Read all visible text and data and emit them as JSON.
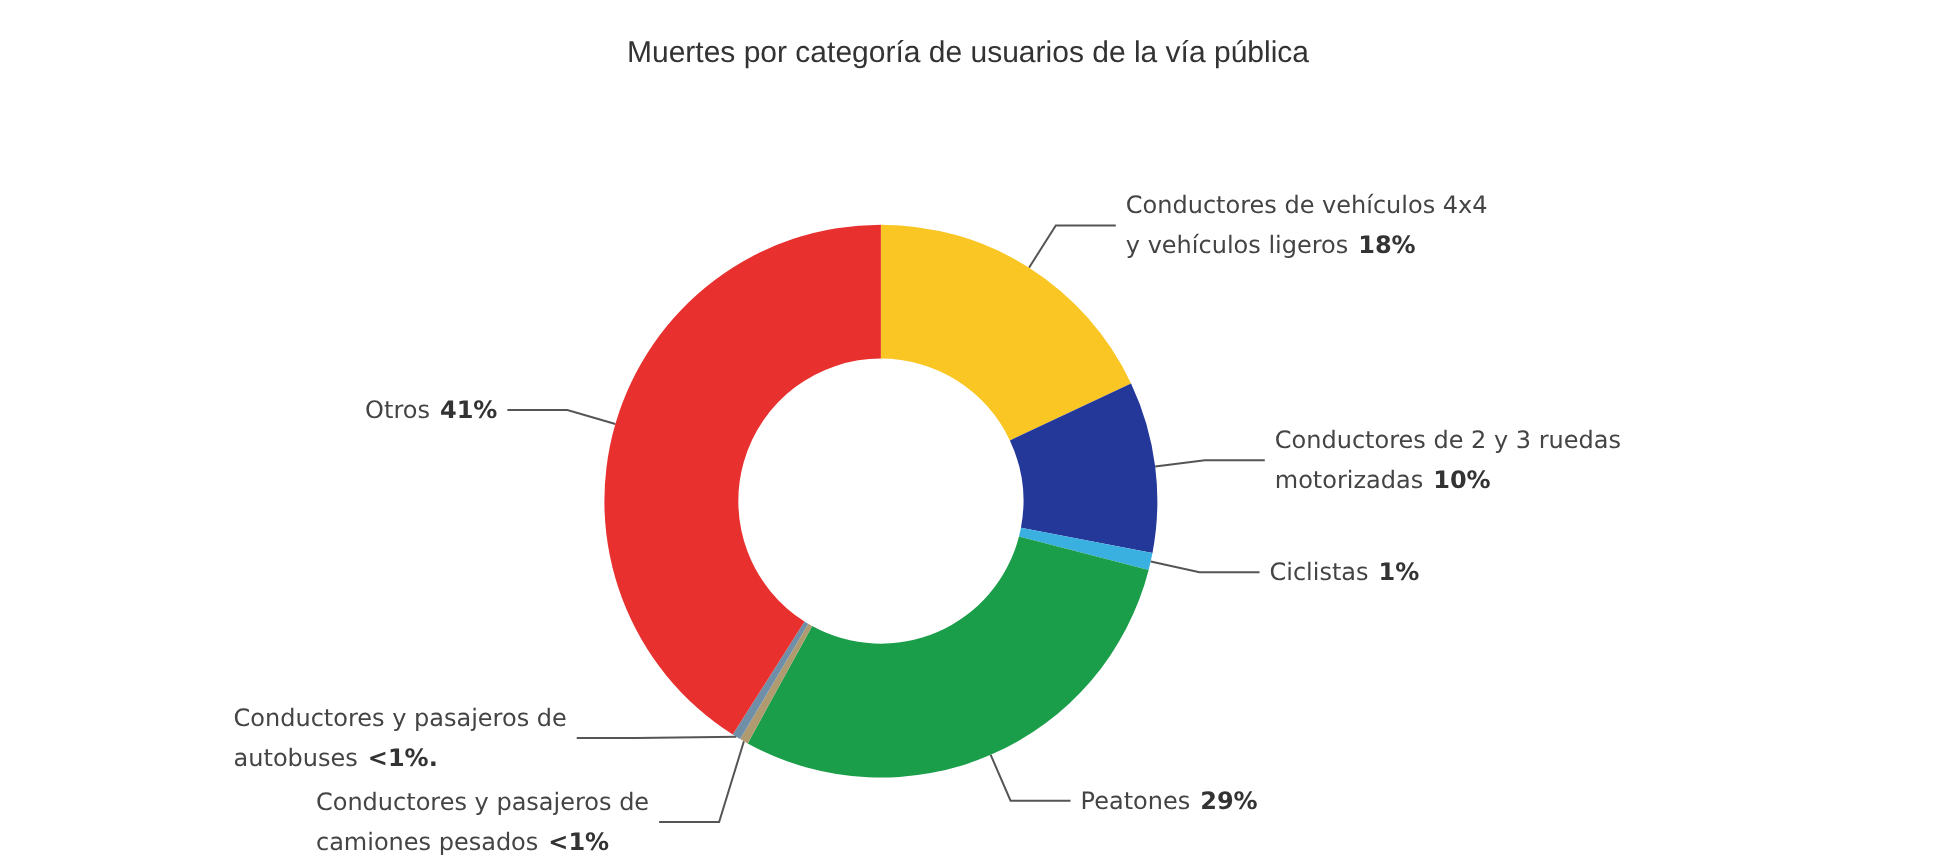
{
  "chart_data": {
    "type": "donut",
    "title": "Muertes por categoría de usuarios de la vía pública",
    "categories": [
      "Conductores de vehículos 4x4 y vehículos ligeros",
      "Conductores de 2 y 3 ruedas motorizadas",
      "Ciclistas",
      "Peatones",
      "Conductores y pasajeros de camiones pesados",
      "Conductores y pasajeros de autobuses",
      "Otros"
    ],
    "values": [
      18,
      10,
      1,
      29,
      0.5,
      0.5,
      41
    ],
    "value_labels": [
      "18%",
      "10%",
      "1%",
      "29%",
      "<1%",
      "<1%.",
      "41%"
    ],
    "colors": [
      "#f9c623",
      "#24389a",
      "#3ab0e0",
      "#1a9e4a",
      "#b09a70",
      "#6f8fa8",
      "#e8302f"
    ],
    "legend": false
  }
}
